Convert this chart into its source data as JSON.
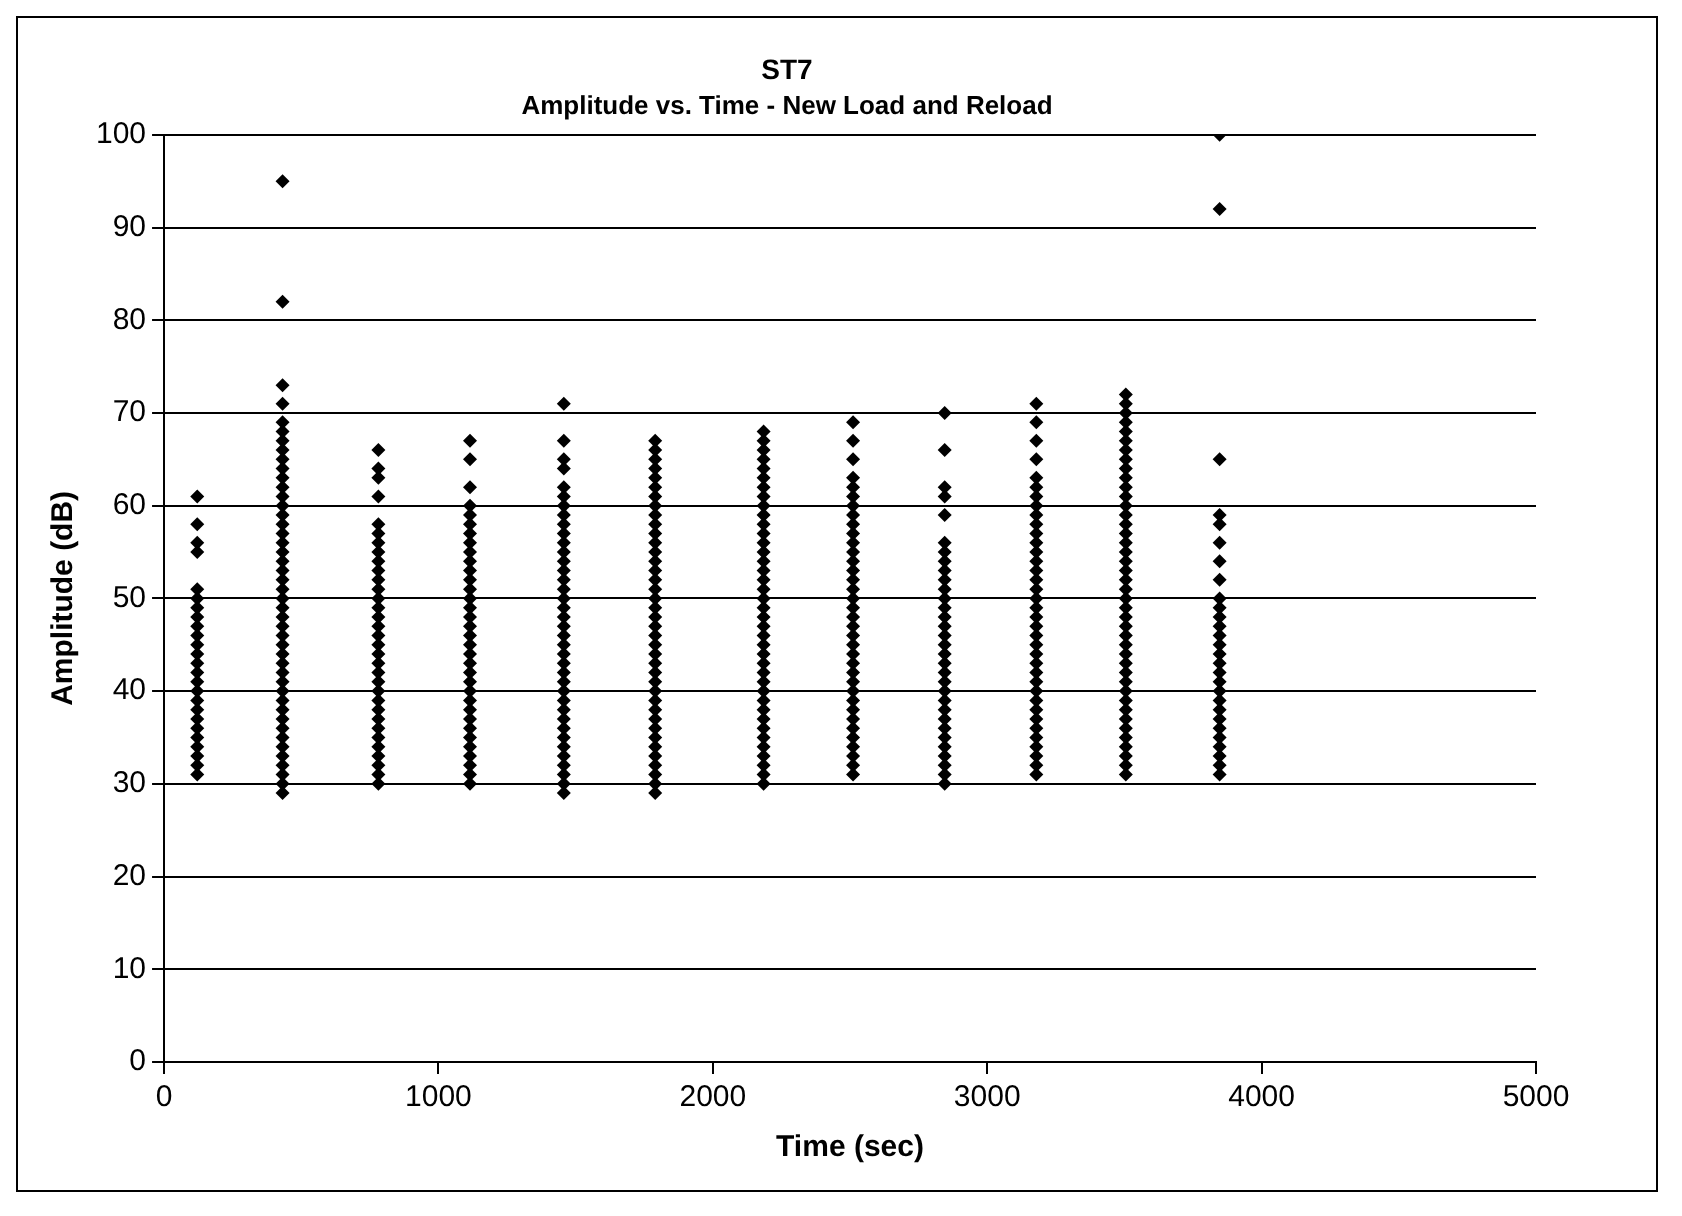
{
  "chart_data": {
    "type": "scatter",
    "title": "ST7",
    "subtitle": "Amplitude vs. Time - New Load and Reload",
    "xlabel": "Time (sec)",
    "ylabel": "Amplitude (dB)",
    "xlim": [
      0,
      5000
    ],
    "xticks": [
      0,
      1000,
      2000,
      3000,
      4000,
      5000
    ],
    "ylim": [
      0,
      100
    ],
    "yticks": [
      0,
      10,
      20,
      30,
      40,
      50,
      60,
      70,
      80,
      90,
      100
    ],
    "grid": "y",
    "legend": false,
    "marker": "diamond",
    "series": [
      {
        "color": "#000000",
        "x": [
          121,
          121,
          121,
          121,
          121,
          121,
          121,
          121,
          121,
          121,
          121,
          121,
          121,
          121,
          121,
          121,
          121,
          121,
          121,
          121,
          121,
          121,
          121,
          121,
          121
        ],
        "values": [
          31,
          32,
          33,
          34,
          35,
          36,
          37,
          38,
          39,
          40,
          41,
          42,
          43,
          44,
          45,
          46,
          47,
          48,
          49,
          50,
          51,
          55,
          56,
          58,
          61
        ]
      },
      {
        "color": "#000000",
        "x": [
          432,
          432,
          432,
          432,
          432,
          432,
          432,
          432,
          432,
          432,
          432,
          432,
          432,
          432,
          432,
          432,
          432,
          432,
          432,
          432,
          432,
          432,
          432,
          432,
          432,
          432,
          432,
          432,
          432,
          432,
          432,
          432,
          432,
          432,
          432,
          432,
          432,
          432,
          432,
          432,
          432,
          432,
          432,
          432,
          432
        ],
        "values": [
          29,
          30,
          31,
          32,
          33,
          34,
          35,
          36,
          37,
          38,
          39,
          40,
          41,
          42,
          43,
          44,
          45,
          46,
          47,
          48,
          49,
          50,
          51,
          52,
          53,
          54,
          55,
          56,
          57,
          58,
          59,
          60,
          61,
          62,
          63,
          64,
          65,
          66,
          67,
          68,
          69,
          71,
          73,
          82,
          95
        ]
      },
      {
        "color": "#000000",
        "x": [
          781,
          781,
          781,
          781,
          781,
          781,
          781,
          781,
          781,
          781,
          781,
          781,
          781,
          781,
          781,
          781,
          781,
          781,
          781,
          781,
          781,
          781,
          781,
          781,
          781,
          781,
          781,
          781,
          781,
          781,
          781,
          781,
          781
        ],
        "values": [
          30,
          31,
          32,
          33,
          34,
          35,
          36,
          37,
          38,
          39,
          40,
          41,
          42,
          43,
          44,
          45,
          46,
          47,
          48,
          49,
          50,
          51,
          52,
          53,
          54,
          55,
          56,
          57,
          58,
          61,
          63,
          64,
          66
        ]
      },
      {
        "color": "#000000",
        "x": [
          1115,
          1115,
          1115,
          1115,
          1115,
          1115,
          1115,
          1115,
          1115,
          1115,
          1115,
          1115,
          1115,
          1115,
          1115,
          1115,
          1115,
          1115,
          1115,
          1115,
          1115,
          1115,
          1115,
          1115,
          1115,
          1115,
          1115,
          1115,
          1115,
          1115,
          1115,
          1115,
          1115,
          1115
        ],
        "values": [
          30,
          31,
          32,
          33,
          34,
          35,
          36,
          37,
          38,
          39,
          40,
          41,
          42,
          43,
          44,
          45,
          46,
          47,
          48,
          49,
          50,
          51,
          52,
          53,
          54,
          55,
          56,
          57,
          58,
          59,
          60,
          62,
          65,
          67
        ]
      },
      {
        "color": "#000000",
        "x": [
          1457,
          1457,
          1457,
          1457,
          1457,
          1457,
          1457,
          1457,
          1457,
          1457,
          1457,
          1457,
          1457,
          1457,
          1457,
          1457,
          1457,
          1457,
          1457,
          1457,
          1457,
          1457,
          1457,
          1457,
          1457,
          1457,
          1457,
          1457,
          1457,
          1457,
          1457,
          1457,
          1457,
          1457,
          1457,
          1457,
          1457,
          1457
        ],
        "values": [
          29,
          30,
          31,
          32,
          33,
          34,
          35,
          36,
          37,
          38,
          39,
          40,
          41,
          42,
          43,
          44,
          45,
          46,
          47,
          48,
          49,
          50,
          51,
          52,
          53,
          54,
          55,
          56,
          57,
          58,
          59,
          60,
          61,
          62,
          64,
          65,
          67,
          71
        ]
      },
      {
        "color": "#000000",
        "x": [
          1790,
          1790,
          1790,
          1790,
          1790,
          1790,
          1790,
          1790,
          1790,
          1790,
          1790,
          1790,
          1790,
          1790,
          1790,
          1790,
          1790,
          1790,
          1790,
          1790,
          1790,
          1790,
          1790,
          1790,
          1790,
          1790,
          1790,
          1790,
          1790,
          1790,
          1790,
          1790,
          1790,
          1790,
          1790,
          1790,
          1790,
          1790,
          1790
        ],
        "values": [
          29,
          30,
          31,
          32,
          33,
          34,
          35,
          36,
          37,
          38,
          39,
          40,
          41,
          42,
          43,
          44,
          45,
          46,
          47,
          48,
          49,
          50,
          51,
          52,
          53,
          54,
          55,
          56,
          57,
          58,
          59,
          60,
          61,
          62,
          63,
          64,
          65,
          66,
          67
        ]
      },
      {
        "color": "#000000",
        "x": [
          2185,
          2185,
          2185,
          2185,
          2185,
          2185,
          2185,
          2185,
          2185,
          2185,
          2185,
          2185,
          2185,
          2185,
          2185,
          2185,
          2185,
          2185,
          2185,
          2185,
          2185,
          2185,
          2185,
          2185,
          2185,
          2185,
          2185,
          2185,
          2185,
          2185,
          2185,
          2185,
          2185,
          2185,
          2185,
          2185,
          2185,
          2185,
          2185
        ],
        "values": [
          30,
          31,
          32,
          33,
          34,
          35,
          36,
          37,
          38,
          39,
          40,
          41,
          42,
          43,
          44,
          45,
          46,
          47,
          48,
          49,
          50,
          51,
          52,
          53,
          54,
          55,
          56,
          57,
          58,
          59,
          60,
          61,
          62,
          63,
          64,
          65,
          66,
          67,
          68
        ]
      },
      {
        "color": "#000000",
        "x": [
          2511,
          2511,
          2511,
          2511,
          2511,
          2511,
          2511,
          2511,
          2511,
          2511,
          2511,
          2511,
          2511,
          2511,
          2511,
          2511,
          2511,
          2511,
          2511,
          2511,
          2511,
          2511,
          2511,
          2511,
          2511,
          2511,
          2511,
          2511,
          2511,
          2511,
          2511,
          2511,
          2511,
          2511,
          2511,
          2511
        ],
        "values": [
          31,
          32,
          33,
          34,
          35,
          36,
          37,
          38,
          39,
          40,
          41,
          42,
          43,
          44,
          45,
          46,
          47,
          48,
          49,
          50,
          51,
          52,
          53,
          54,
          55,
          56,
          57,
          58,
          59,
          60,
          61,
          62,
          63,
          65,
          67,
          69
        ]
      },
      {
        "color": "#000000",
        "x": [
          2845,
          2845,
          2845,
          2845,
          2845,
          2845,
          2845,
          2845,
          2845,
          2845,
          2845,
          2845,
          2845,
          2845,
          2845,
          2845,
          2845,
          2845,
          2845,
          2845,
          2845,
          2845,
          2845,
          2845,
          2845,
          2845,
          2845,
          2845,
          2845,
          2845,
          2845,
          2845
        ],
        "values": [
          30,
          31,
          32,
          33,
          34,
          35,
          36,
          37,
          38,
          39,
          40,
          41,
          42,
          43,
          44,
          45,
          46,
          47,
          48,
          49,
          50,
          51,
          52,
          53,
          54,
          55,
          56,
          59,
          61,
          62,
          66,
          70
        ]
      },
      {
        "color": "#000000",
        "x": [
          3179,
          3179,
          3179,
          3179,
          3179,
          3179,
          3179,
          3179,
          3179,
          3179,
          3179,
          3179,
          3179,
          3179,
          3179,
          3179,
          3179,
          3179,
          3179,
          3179,
          3179,
          3179,
          3179,
          3179,
          3179,
          3179,
          3179,
          3179,
          3179,
          3179,
          3179,
          3179,
          3179,
          3179,
          3179,
          3179,
          3179
        ],
        "values": [
          31,
          32,
          33,
          34,
          35,
          36,
          37,
          38,
          39,
          40,
          41,
          42,
          43,
          44,
          45,
          46,
          47,
          48,
          49,
          50,
          51,
          52,
          53,
          54,
          55,
          56,
          57,
          58,
          59,
          60,
          61,
          62,
          63,
          65,
          67,
          69,
          71
        ]
      },
      {
        "color": "#000000",
        "x": [
          3505,
          3505,
          3505,
          3505,
          3505,
          3505,
          3505,
          3505,
          3505,
          3505,
          3505,
          3505,
          3505,
          3505,
          3505,
          3505,
          3505,
          3505,
          3505,
          3505,
          3505,
          3505,
          3505,
          3505,
          3505,
          3505,
          3505,
          3505,
          3505,
          3505,
          3505,
          3505,
          3505,
          3505,
          3505,
          3505,
          3505,
          3505,
          3505,
          3505,
          3505,
          3505
        ],
        "values": [
          31,
          32,
          33,
          34,
          35,
          36,
          37,
          38,
          39,
          40,
          41,
          42,
          43,
          44,
          45,
          46,
          47,
          48,
          49,
          50,
          51,
          52,
          53,
          54,
          55,
          56,
          57,
          58,
          59,
          60,
          61,
          62,
          63,
          64,
          65,
          66,
          67,
          68,
          69,
          70,
          71,
          72
        ]
      },
      {
        "color": "#000000",
        "x": [
          3847,
          3847,
          3847,
          3847,
          3847,
          3847,
          3847,
          3847,
          3847,
          3847,
          3847,
          3847,
          3847,
          3847,
          3847,
          3847,
          3847,
          3847,
          3847,
          3847,
          3847,
          3847,
          3847,
          3847,
          3847,
          3847,
          3847,
          3847
        ],
        "values": [
          31,
          32,
          33,
          34,
          35,
          36,
          37,
          38,
          39,
          40,
          41,
          42,
          43,
          44,
          45,
          46,
          47,
          48,
          49,
          50,
          52,
          54,
          56,
          58,
          59,
          65,
          92,
          100
        ]
      }
    ]
  }
}
